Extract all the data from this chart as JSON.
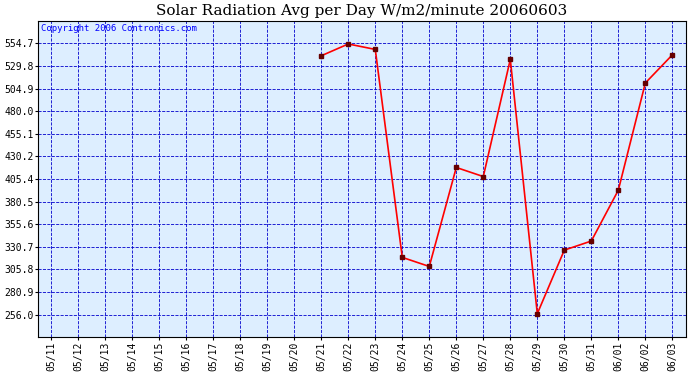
{
  "title": "Solar Radiation Avg per Day W/m2/minute 20060603",
  "copyright": "Copyright 2006 Contronics.com",
  "background_color": "#ffffff",
  "plot_bg_color": "#ddeeff",
  "line_color": "red",
  "marker_color": "#660000",
  "grid_color": "#0000cc",
  "x_labels": [
    "05/11",
    "05/12",
    "05/13",
    "05/14",
    "05/15",
    "05/16",
    "05/17",
    "05/18",
    "05/19",
    "05/20",
    "05/21",
    "05/22",
    "05/23",
    "05/24",
    "05/25",
    "05/26",
    "05/27",
    "05/28",
    "05/29",
    "05/30",
    "05/31",
    "06/01",
    "06/02",
    "06/03"
  ],
  "y_values": [
    null,
    null,
    null,
    null,
    null,
    null,
    null,
    null,
    null,
    null,
    541.0,
    554.0,
    548.0,
    319.0,
    309.0,
    418.0,
    408.0,
    537.0,
    257.0,
    327.0,
    337.0,
    393.0,
    511.0,
    542.0
  ],
  "ylim_min": 231.0,
  "ylim_max": 579.6,
  "yticks": [
    256.0,
    280.9,
    305.8,
    330.7,
    355.6,
    380.5,
    405.4,
    430.2,
    455.1,
    480.0,
    504.9,
    529.8,
    554.7
  ],
  "title_fontsize": 11,
  "tick_fontsize": 7,
  "copyright_fontsize": 6.5
}
